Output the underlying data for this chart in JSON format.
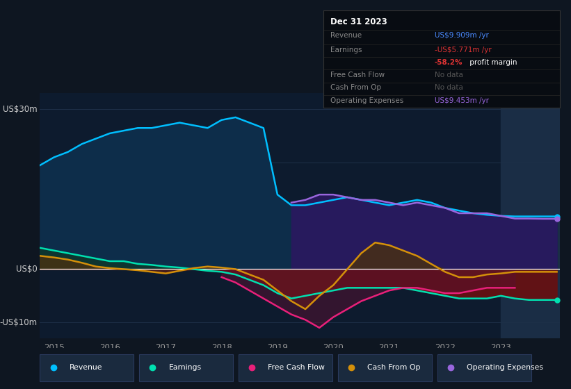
{
  "bg_color": "#0e1621",
  "plot_bg_color": "#0d1b2e",
  "grid_color": "#1e3048",
  "zero_line_color": "#ffffff",
  "highlight_color": "#1a2d45",
  "ylabel_30": "US$30m",
  "ylabel_0": "US$0",
  "ylabel_neg10": "-US$10m",
  "x_years": [
    2014.75,
    2015.0,
    2015.25,
    2015.5,
    2015.75,
    2016.0,
    2016.25,
    2016.5,
    2016.75,
    2017.0,
    2017.25,
    2017.5,
    2017.75,
    2018.0,
    2018.25,
    2018.5,
    2018.75,
    2019.0,
    2019.25,
    2019.5,
    2019.75,
    2020.0,
    2020.25,
    2020.5,
    2020.75,
    2021.0,
    2021.25,
    2021.5,
    2021.75,
    2022.0,
    2022.25,
    2022.5,
    2022.75,
    2023.0,
    2023.25,
    2023.5,
    2023.75,
    2024.0
  ],
  "revenue": [
    19.5,
    21,
    22,
    23.5,
    24.5,
    25.5,
    26,
    26.5,
    26.5,
    27,
    27.5,
    27,
    26.5,
    28,
    28.5,
    27.5,
    26.5,
    14,
    12,
    12,
    12.5,
    13,
    13.5,
    13,
    12.5,
    12,
    12.5,
    13,
    12.5,
    11.5,
    11,
    10.5,
    10.2,
    10,
    9.9,
    9.9,
    9.9,
    9.9
  ],
  "earnings": [
    4,
    3.5,
    3,
    2.5,
    2,
    1.5,
    1.5,
    1.0,
    0.8,
    0.5,
    0.3,
    0.0,
    -0.3,
    -0.5,
    -1.0,
    -2.0,
    -3.0,
    -4.5,
    -5.5,
    -5.0,
    -4.5,
    -4.0,
    -3.5,
    -3.5,
    -3.5,
    -3.5,
    -3.5,
    -4.0,
    -4.5,
    -5.0,
    -5.5,
    -5.5,
    -5.5,
    -5.0,
    -5.5,
    -5.77,
    -5.77,
    -5.77
  ],
  "free_cash_flow": [
    null,
    null,
    null,
    null,
    null,
    null,
    null,
    null,
    null,
    null,
    null,
    null,
    null,
    -1.5,
    -2.5,
    -4.0,
    -5.5,
    -7.0,
    -8.5,
    -9.5,
    -11.0,
    -9.0,
    -7.5,
    -6.0,
    -5.0,
    -4.0,
    -3.5,
    -3.5,
    -4.0,
    -4.5,
    -4.5,
    -4.0,
    -3.5,
    -3.5,
    -3.5,
    null,
    null,
    null
  ],
  "cash_from_op": [
    2.5,
    2.2,
    1.8,
    1.2,
    0.5,
    0.2,
    0.0,
    -0.2,
    -0.5,
    -0.8,
    -0.3,
    0.2,
    0.5,
    0.3,
    0.0,
    -1.0,
    -2.0,
    -4.0,
    -6.0,
    -7.5,
    -5.0,
    -3.0,
    0.0,
    3.0,
    5.0,
    4.5,
    3.5,
    2.5,
    1.0,
    -0.5,
    -1.5,
    -1.5,
    -1.0,
    -0.8,
    -0.5,
    -0.5,
    -0.5,
    -0.5
  ],
  "op_expenses": [
    null,
    null,
    null,
    null,
    null,
    null,
    null,
    null,
    null,
    null,
    null,
    null,
    null,
    null,
    null,
    null,
    null,
    null,
    12.5,
    13.0,
    14.0,
    14.0,
    13.5,
    13.0,
    13.0,
    12.5,
    12.0,
    12.5,
    12.0,
    11.5,
    10.5,
    10.5,
    10.5,
    10.0,
    9.5,
    9.5,
    9.453,
    9.453
  ],
  "revenue_line_color": "#00bfff",
  "revenue_fill_color": "#0d2d4a",
  "earnings_line_color": "#00e0b0",
  "earnings_pos_fill": "#0d3530",
  "earnings_neg_fill": "#6a1010",
  "free_cash_flow_line_color": "#e8207a",
  "free_cash_flow_fill": "#5a1030",
  "cash_from_op_line_color": "#d4900a",
  "cash_from_op_pos_fill": "#4a3010",
  "cash_from_op_neg_fill": "#6a2010",
  "op_expenses_line_color": "#9966dd",
  "op_expenses_fill_color": "#2a1860",
  "highlight_start": 2023.0,
  "highlight_end": 2024.05,
  "xlim": [
    2014.75,
    2024.05
  ],
  "ylim": [
    -13,
    33
  ],
  "legend_labels": [
    "Revenue",
    "Earnings",
    "Free Cash Flow",
    "Cash From Op",
    "Operating Expenses"
  ],
  "legend_colors": [
    "#00bfff",
    "#00e0b0",
    "#e8207a",
    "#d4900a",
    "#9966dd"
  ],
  "legend_box_color": "#1a2a3e",
  "legend_box_border": "#2a3a5e",
  "tooltip_bg": "#080c12",
  "tooltip_border": "#333333",
  "tooltip_title": "Dec 31 2023",
  "tooltip_revenue_label": "Revenue",
  "tooltip_revenue_value": "US$9.909m /yr",
  "tooltip_revenue_color": "#4a8aff",
  "tooltip_earnings_label": "Earnings",
  "tooltip_earnings_value": "-US$5.771m /yr",
  "tooltip_earnings_color": "#dd3333",
  "tooltip_margin_colored": "-58.2%",
  "tooltip_margin_plain": " profit margin",
  "tooltip_margin_color": "#dd3333",
  "tooltip_fcf_label": "Free Cash Flow",
  "tooltip_nodata": "No data",
  "tooltip_nodata_color": "#555555",
  "tooltip_cfop_label": "Cash From Op",
  "tooltip_opex_label": "Operating Expenses",
  "tooltip_opex_value": "US$9.453m /yr",
  "tooltip_opex_color": "#9966dd",
  "text_color_dim": "#888888"
}
